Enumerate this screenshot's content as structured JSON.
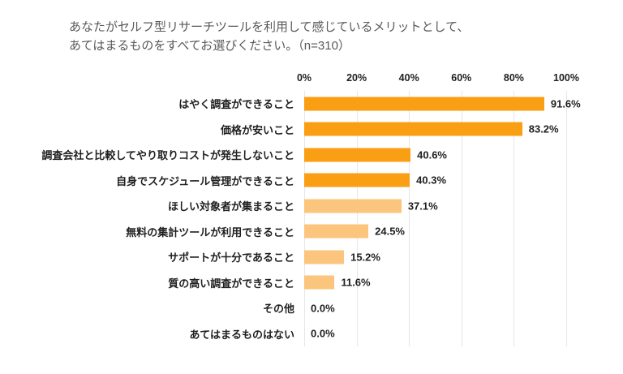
{
  "header": {
    "title_line1": "あなたがセルフ型リサーチツールを利用して感じているメリットとして、",
    "title_line2": "あてはまるものをすべてお選びください。（n=310）"
  },
  "chart_data": {
    "type": "bar",
    "orientation": "horizontal",
    "title": "あなたがセルフ型リサーチツールを利用して感じているメリットとして、あてはまるものをすべてお選びください。（n=310）",
    "sample_size_label": "n=310",
    "categories": [
      "はやく調査ができること",
      "価格が安いこと",
      "調査会社と比較してやり取りコストが発生しないこと",
      "自身でスケジュール管理ができること",
      "ほしい対象者が集まること",
      "無料の集計ツールが利用できること",
      "サポートが十分であること",
      "質の高い調査ができること",
      "その他",
      "あてはまるものはない"
    ],
    "values": [
      91.6,
      83.2,
      40.6,
      40.3,
      37.1,
      24.5,
      15.2,
      11.6,
      0.0,
      0.0
    ],
    "value_labels": [
      "91.6%",
      "83.2%",
      "40.6%",
      "40.3%",
      "37.1%",
      "24.5%",
      "15.2%",
      "11.6%",
      "0.0%",
      "0.0%"
    ],
    "bar_colors": [
      "#FA9E14",
      "#FA9E14",
      "#FA9E14",
      "#FA9E14",
      "#FBC57D",
      "#FBC57D",
      "#FBC57D",
      "#FBC57D",
      null,
      null
    ],
    "x_ticks": [
      "0%",
      "20%",
      "40%",
      "60%",
      "80%",
      "100%"
    ],
    "xlim": [
      0,
      100
    ],
    "grid": true,
    "legend": "none",
    "colors": {
      "dark_orange": "#FA9E14",
      "light_orange": "#FBC57D",
      "gridline": "#E7E7E7",
      "label_text": "#1F1F1F",
      "title_text": "#595959",
      "background": "#FFFFFF"
    }
  }
}
